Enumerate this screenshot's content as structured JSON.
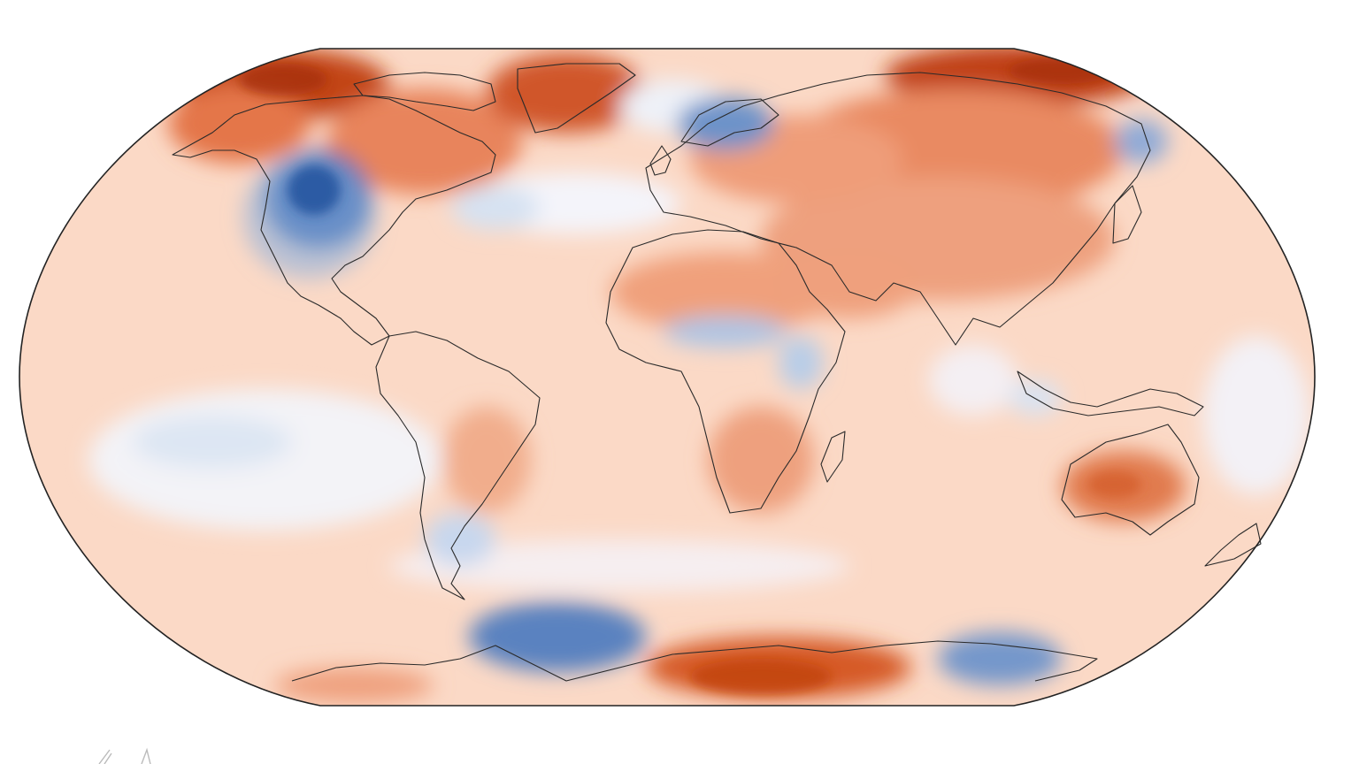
{
  "map": {
    "projection": "robinson",
    "type": "temperature-anomaly-map",
    "palette": {
      "strong_warm": "#b83a0c",
      "warm": "#e9805a",
      "mild_warm": "#f7c7ab",
      "neutral": "#fdeee5",
      "mild_cool": "#e6eef8",
      "cool": "#a9c4e4",
      "strong_cool": "#2f62ae",
      "coastline": "#2a2a2a"
    },
    "features": {
      "coastlines": true,
      "graticule": false,
      "title": "",
      "colorbar": false
    }
  }
}
